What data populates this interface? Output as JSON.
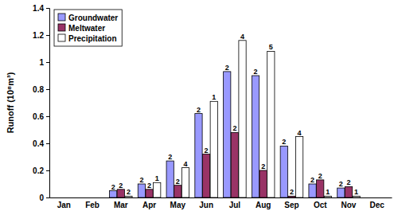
{
  "chart_data": {
    "type": "bar",
    "y_label": "Runoff (10⁸m³)",
    "categories": [
      "Jan",
      "Feb",
      "Mar",
      "Apr",
      "May",
      "Jun",
      "Jul",
      "Aug",
      "Sep",
      "Oct",
      "Nov",
      "Dec"
    ],
    "series": [
      {
        "name": "Groundwater",
        "color": "#9999ff",
        "values": [
          null,
          null,
          0.05,
          0.1,
          0.27,
          0.62,
          0.93,
          0.9,
          0.38,
          0.1,
          0.07,
          null
        ],
        "annotations": [
          null,
          null,
          "2",
          "2",
          "2",
          "2",
          "2",
          "2",
          "2",
          "2",
          "2",
          null
        ]
      },
      {
        "name": "Meltwater",
        "color": "#993366",
        "values": [
          null,
          null,
          0.06,
          0.06,
          0.09,
          0.32,
          0.48,
          0.2,
          0.01,
          0.13,
          0.08,
          null
        ],
        "annotations": [
          null,
          null,
          "2",
          "2",
          "2",
          "2",
          "2",
          "2",
          "2",
          "2",
          "2",
          null
        ]
      },
      {
        "name": "Precipitation",
        "color": "#ffffff",
        "values": [
          null,
          null,
          0.01,
          0.11,
          0.22,
          0.71,
          1.16,
          1.08,
          0.45,
          0.01,
          0.01,
          null
        ],
        "annotations": [
          null,
          null,
          "2",
          "1",
          "4",
          "1",
          "4",
          "5",
          "4",
          "1",
          "1",
          null
        ]
      }
    ],
    "ylim": [
      0,
      1.4
    ],
    "yticks": [
      0,
      0.2,
      0.4,
      0.6,
      0.8,
      1,
      1.2,
      1.4
    ],
    "grid": false,
    "legend": "top-left"
  }
}
